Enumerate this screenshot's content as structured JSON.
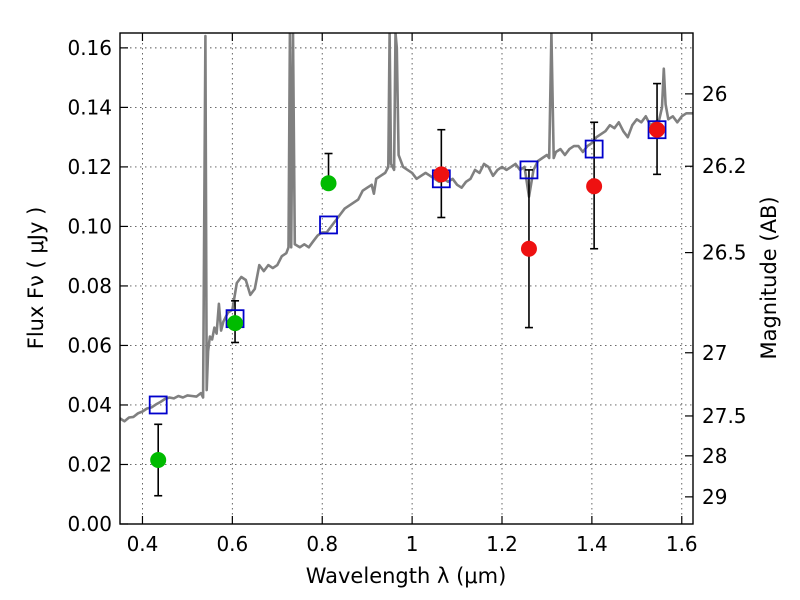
{
  "chart_data": {
    "type": "scatter",
    "xlabel": "Wavelength  λ (μm)",
    "ylabel": "Flux  Fν  ( μJy )",
    "y2label": "Magnitude (AB)",
    "xlim": [
      0.35,
      1.625
    ],
    "ylim": [
      0.0,
      0.165
    ],
    "grid": true,
    "x_ticks": [
      {
        "value": 0.4,
        "label": "0.4"
      },
      {
        "value": 0.6,
        "label": "0.6"
      },
      {
        "value": 0.8,
        "label": "0.8"
      },
      {
        "value": 1.0,
        "label": "1"
      },
      {
        "value": 1.2,
        "label": "1.2"
      },
      {
        "value": 1.4,
        "label": "1.4"
      },
      {
        "value": 1.6,
        "label": "1.6"
      }
    ],
    "y_ticks": [
      {
        "value": 0.0,
        "label": "0.00"
      },
      {
        "value": 0.02,
        "label": "0.02"
      },
      {
        "value": 0.04,
        "label": "0.04"
      },
      {
        "value": 0.06,
        "label": "0.06"
      },
      {
        "value": 0.08,
        "label": "0.08"
      },
      {
        "value": 0.1,
        "label": "0.10"
      },
      {
        "value": 0.12,
        "label": "0.12"
      },
      {
        "value": 0.14,
        "label": "0.14"
      },
      {
        "value": 0.16,
        "label": "0.16"
      }
    ],
    "y2_ticks": [
      {
        "value": 26,
        "label": "26"
      },
      {
        "value": 26.2,
        "label": "26.2"
      },
      {
        "value": 26.5,
        "label": "26.5"
      },
      {
        "value": 27,
        "label": "27"
      },
      {
        "value": 27.5,
        "label": "27.5"
      },
      {
        "value": 28,
        "label": "28"
      },
      {
        "value": 29,
        "label": "29"
      }
    ],
    "colors": {
      "model": "#808080",
      "green": "#00bb00",
      "red": "#ee1111",
      "square": "#0000cc",
      "errorbar": "#000000"
    },
    "series": [
      {
        "kind": "model-spectrum",
        "points": [
          [
            0.35,
            0.0355
          ],
          [
            0.36,
            0.0345
          ],
          [
            0.37,
            0.0358
          ],
          [
            0.38,
            0.036
          ],
          [
            0.39,
            0.0372
          ],
          [
            0.4,
            0.0378
          ],
          [
            0.41,
            0.0388
          ],
          [
            0.42,
            0.0392
          ],
          [
            0.43,
            0.0402
          ],
          [
            0.44,
            0.041
          ],
          [
            0.45,
            0.042
          ],
          [
            0.46,
            0.0425
          ],
          [
            0.47,
            0.0422
          ],
          [
            0.48,
            0.043
          ],
          [
            0.49,
            0.0425
          ],
          [
            0.5,
            0.0432
          ],
          [
            0.51,
            0.043
          ],
          [
            0.52,
            0.0428
          ],
          [
            0.53,
            0.044
          ],
          [
            0.535,
            0.0425
          ],
          [
            0.54,
            0.164
          ],
          [
            0.543,
            0.045
          ],
          [
            0.546,
            0.058
          ],
          [
            0.55,
            0.063
          ],
          [
            0.555,
            0.062
          ],
          [
            0.56,
            0.066
          ],
          [
            0.565,
            0.064
          ],
          [
            0.57,
            0.074
          ],
          [
            0.575,
            0.065
          ],
          [
            0.58,
            0.068
          ],
          [
            0.59,
            0.071
          ],
          [
            0.6,
            0.072
          ],
          [
            0.61,
            0.081
          ],
          [
            0.62,
            0.083
          ],
          [
            0.63,
            0.082
          ],
          [
            0.64,
            0.077
          ],
          [
            0.65,
            0.079
          ],
          [
            0.66,
            0.087
          ],
          [
            0.67,
            0.085
          ],
          [
            0.68,
            0.087
          ],
          [
            0.69,
            0.086
          ],
          [
            0.7,
            0.087
          ],
          [
            0.71,
            0.09
          ],
          [
            0.72,
            0.091
          ],
          [
            0.725,
            0.093
          ],
          [
            0.728,
            0.165
          ],
          [
            0.731,
            0.093
          ],
          [
            0.735,
            0.165
          ],
          [
            0.739,
            0.094
          ],
          [
            0.75,
            0.093
          ],
          [
            0.76,
            0.094
          ],
          [
            0.77,
            0.093
          ],
          [
            0.78,
            0.095
          ],
          [
            0.79,
            0.097
          ],
          [
            0.8,
            0.098
          ],
          [
            0.81,
            0.098
          ],
          [
            0.82,
            0.1
          ],
          [
            0.83,
            0.102
          ],
          [
            0.84,
            0.104
          ],
          [
            0.85,
            0.106
          ],
          [
            0.86,
            0.107
          ],
          [
            0.87,
            0.108
          ],
          [
            0.88,
            0.109
          ],
          [
            0.89,
            0.112
          ],
          [
            0.9,
            0.113
          ],
          [
            0.91,
            0.114
          ],
          [
            0.915,
            0.111
          ],
          [
            0.92,
            0.116
          ],
          [
            0.93,
            0.117
          ],
          [
            0.94,
            0.118
          ],
          [
            0.947,
            0.12
          ],
          [
            0.95,
            0.165
          ],
          [
            0.953,
            0.121
          ],
          [
            0.96,
            0.119
          ],
          [
            0.963,
            0.165
          ],
          [
            0.966,
            0.16
          ],
          [
            0.97,
            0.124
          ],
          [
            0.98,
            0.12
          ],
          [
            0.99,
            0.119
          ],
          [
            1.0,
            0.118
          ],
          [
            1.01,
            0.116
          ],
          [
            1.02,
            0.117
          ],
          [
            1.03,
            0.118
          ],
          [
            1.04,
            0.117
          ],
          [
            1.05,
            0.116
          ],
          [
            1.06,
            0.115
          ],
          [
            1.07,
            0.116
          ],
          [
            1.08,
            0.115
          ],
          [
            1.09,
            0.116
          ],
          [
            1.1,
            0.114
          ],
          [
            1.11,
            0.113
          ],
          [
            1.12,
            0.115
          ],
          [
            1.13,
            0.116
          ],
          [
            1.14,
            0.119
          ],
          [
            1.15,
            0.118
          ],
          [
            1.16,
            0.121
          ],
          [
            1.17,
            0.12
          ],
          [
            1.18,
            0.117
          ],
          [
            1.19,
            0.119
          ],
          [
            1.2,
            0.12
          ],
          [
            1.21,
            0.119
          ],
          [
            1.22,
            0.12
          ],
          [
            1.23,
            0.121
          ],
          [
            1.24,
            0.119
          ],
          [
            1.25,
            0.12
          ],
          [
            1.26,
            0.11
          ],
          [
            1.27,
            0.119
          ],
          [
            1.28,
            0.122
          ],
          [
            1.29,
            0.123
          ],
          [
            1.3,
            0.124
          ],
          [
            1.305,
            0.123
          ],
          [
            1.31,
            0.165
          ],
          [
            1.315,
            0.123
          ],
          [
            1.32,
            0.125
          ],
          [
            1.33,
            0.126
          ],
          [
            1.34,
            0.124
          ],
          [
            1.35,
            0.126
          ],
          [
            1.36,
            0.127
          ],
          [
            1.37,
            0.127
          ],
          [
            1.38,
            0.125
          ],
          [
            1.39,
            0.127
          ],
          [
            1.4,
            0.128
          ],
          [
            1.41,
            0.13
          ],
          [
            1.42,
            0.131
          ],
          [
            1.43,
            0.132
          ],
          [
            1.44,
            0.134
          ],
          [
            1.45,
            0.133
          ],
          [
            1.46,
            0.135
          ],
          [
            1.47,
            0.132
          ],
          [
            1.48,
            0.13
          ],
          [
            1.49,
            0.134
          ],
          [
            1.5,
            0.136
          ],
          [
            1.51,
            0.135
          ],
          [
            1.52,
            0.137
          ],
          [
            1.53,
            0.134
          ],
          [
            1.54,
            0.135
          ],
          [
            1.55,
            0.136
          ],
          [
            1.556,
            0.14
          ],
          [
            1.56,
            0.153
          ],
          [
            1.564,
            0.141
          ],
          [
            1.57,
            0.136
          ],
          [
            1.58,
            0.137
          ],
          [
            1.59,
            0.135
          ],
          [
            1.6,
            0.137
          ],
          [
            1.61,
            0.138
          ],
          [
            1.625,
            0.138
          ]
        ]
      },
      {
        "kind": "model-photometry",
        "marker": "open-square",
        "x": [
          0.435,
          0.606,
          0.814,
          1.065,
          1.26,
          1.405,
          1.545
        ],
        "y": [
          0.04,
          0.069,
          0.1005,
          0.116,
          0.119,
          0.126,
          0.1325
        ]
      },
      {
        "kind": "observed-detection",
        "marker": "filled-circle",
        "color": "green",
        "x": [
          0.435,
          0.606,
          0.814
        ],
        "y": [
          0.0215,
          0.0675,
          0.1145
        ],
        "err_low": [
          0.012,
          0.0065,
          0.0
        ],
        "err_high": [
          0.012,
          0.0075,
          0.01
        ]
      },
      {
        "kind": "observed-detection",
        "marker": "filled-circle",
        "color": "red",
        "x": [
          1.065,
          1.26,
          1.405,
          1.545
        ],
        "y": [
          0.1175,
          0.0925,
          0.1135,
          0.1325
        ],
        "err_low": [
          0.0145,
          0.0265,
          0.021,
          0.015
        ],
        "err_high": [
          0.015,
          0.0265,
          0.0215,
          0.0155
        ]
      }
    ]
  }
}
